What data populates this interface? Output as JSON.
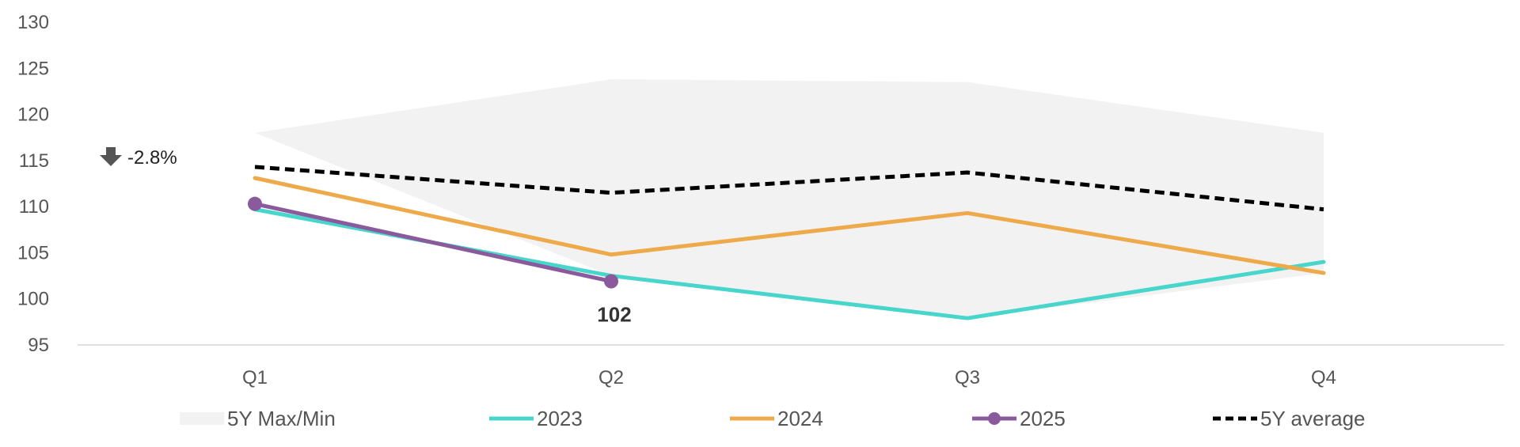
{
  "chart_data": {
    "type": "line",
    "categories": [
      "Q1",
      "Q2",
      "Q3",
      "Q4"
    ],
    "ylim": [
      95,
      130
    ],
    "yticks": [
      95,
      100,
      105,
      110,
      115,
      120,
      125,
      130
    ],
    "band": {
      "name": "5Y Max/Min",
      "color": "#f2f2f2",
      "max": [
        118,
        123.8,
        123.5,
        118
      ],
      "min": [
        118,
        102.5,
        97.9,
        102.8
      ]
    },
    "series": [
      {
        "name": "2023",
        "color": "#48d6cc",
        "values": [
          109.7,
          102.5,
          97.9,
          104
        ],
        "style": "solid"
      },
      {
        "name": "2024",
        "color": "#eeaa4a",
        "values": [
          113.1,
          104.8,
          109.3,
          102.8
        ],
        "style": "solid"
      },
      {
        "name": "2025",
        "color": "#8a5a9c",
        "values": [
          110.3,
          101.9,
          null,
          null
        ],
        "style": "solid-markers"
      },
      {
        "name": "5Y average",
        "color": "#000000",
        "values": [
          114.3,
          111.5,
          113.7,
          109.7
        ],
        "style": "dashed"
      }
    ],
    "data_labels": [
      {
        "series": "2025",
        "index": 1,
        "text": "102"
      }
    ],
    "annotation": {
      "text": "-2.8%",
      "icon": "arrow-down-icon"
    },
    "grid": false,
    "legend_position": "bottom"
  }
}
